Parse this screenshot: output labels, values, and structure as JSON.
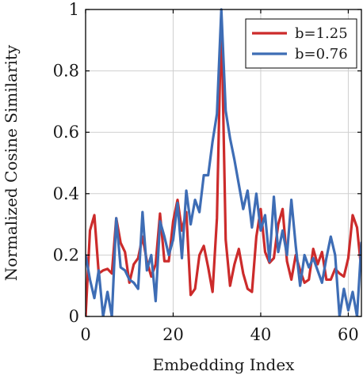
{
  "chart_data": {
    "type": "line",
    "title": "",
    "xlabel": "Embedding Index",
    "ylabel": "Normalized Cosine Similarity",
    "xlim": [
      0,
      63
    ],
    "ylim": [
      0,
      1
    ],
    "xticks": [
      0,
      20,
      40,
      60
    ],
    "yticks": [
      0,
      0.2,
      0.4,
      0.6,
      0.8,
      1
    ],
    "ytick_labels": [
      "0",
      "0.2",
      "0.4",
      "0.6",
      "0.8",
      "1"
    ],
    "grid": true,
    "legend_position": "top-right",
    "x": [
      0,
      1,
      2,
      3,
      4,
      5,
      6,
      7,
      8,
      9,
      10,
      11,
      12,
      13,
      14,
      15,
      16,
      17,
      18,
      19,
      20,
      21,
      22,
      23,
      24,
      25,
      26,
      27,
      28,
      29,
      30,
      31,
      32,
      33,
      34,
      35,
      36,
      37,
      38,
      39,
      40,
      41,
      42,
      43,
      44,
      45,
      46,
      47,
      48,
      49,
      50,
      51,
      52,
      53,
      54,
      55,
      56,
      57,
      58,
      59,
      60,
      61,
      62,
      63
    ],
    "series": [
      {
        "name": "b=1.25",
        "color": "#cc2b2b",
        "values": [
          0,
          0.28,
          0.33,
          0.14,
          0.15,
          0.155,
          0.14,
          0.32,
          0.24,
          0.21,
          0.11,
          0.17,
          0.19,
          0.26,
          0.18,
          0.13,
          0.17,
          0.335,
          0.18,
          0.18,
          0.31,
          0.38,
          0.28,
          0.34,
          0.07,
          0.09,
          0.2,
          0.23,
          0.16,
          0.08,
          0.32,
          0.99,
          0.25,
          0.1,
          0.17,
          0.22,
          0.14,
          0.09,
          0.08,
          0.26,
          0.35,
          0.21,
          0.175,
          0.19,
          0.3,
          0.35,
          0.18,
          0.12,
          0.2,
          0.15,
          0.11,
          0.12,
          0.22,
          0.17,
          0.21,
          0.12,
          0.12,
          0.155,
          0.14,
          0.13,
          0.19,
          0.33,
          0.29,
          0.15
        ]
      },
      {
        "name": "b=0.76",
        "color": "#3e6db5",
        "values": [
          0.2,
          0.12,
          0.06,
          0.15,
          0.0,
          0.08,
          0.0,
          0.32,
          0.16,
          0.15,
          0.12,
          0.11,
          0.09,
          0.34,
          0.15,
          0.2,
          0.05,
          0.31,
          0.26,
          0.2,
          0.25,
          0.37,
          0.19,
          0.41,
          0.3,
          0.38,
          0.34,
          0.46,
          0.46,
          0.57,
          0.66,
          1.0,
          0.67,
          0.58,
          0.51,
          0.43,
          0.35,
          0.41,
          0.29,
          0.4,
          0.28,
          0.33,
          0.18,
          0.39,
          0.21,
          0.28,
          0.2,
          0.38,
          0.23,
          0.1,
          0.2,
          0.16,
          0.19,
          0.15,
          0.11,
          0.19,
          0.26,
          0.2,
          0.0,
          0.09,
          0.02,
          0.08,
          0.0,
          0.24
        ]
      }
    ]
  }
}
